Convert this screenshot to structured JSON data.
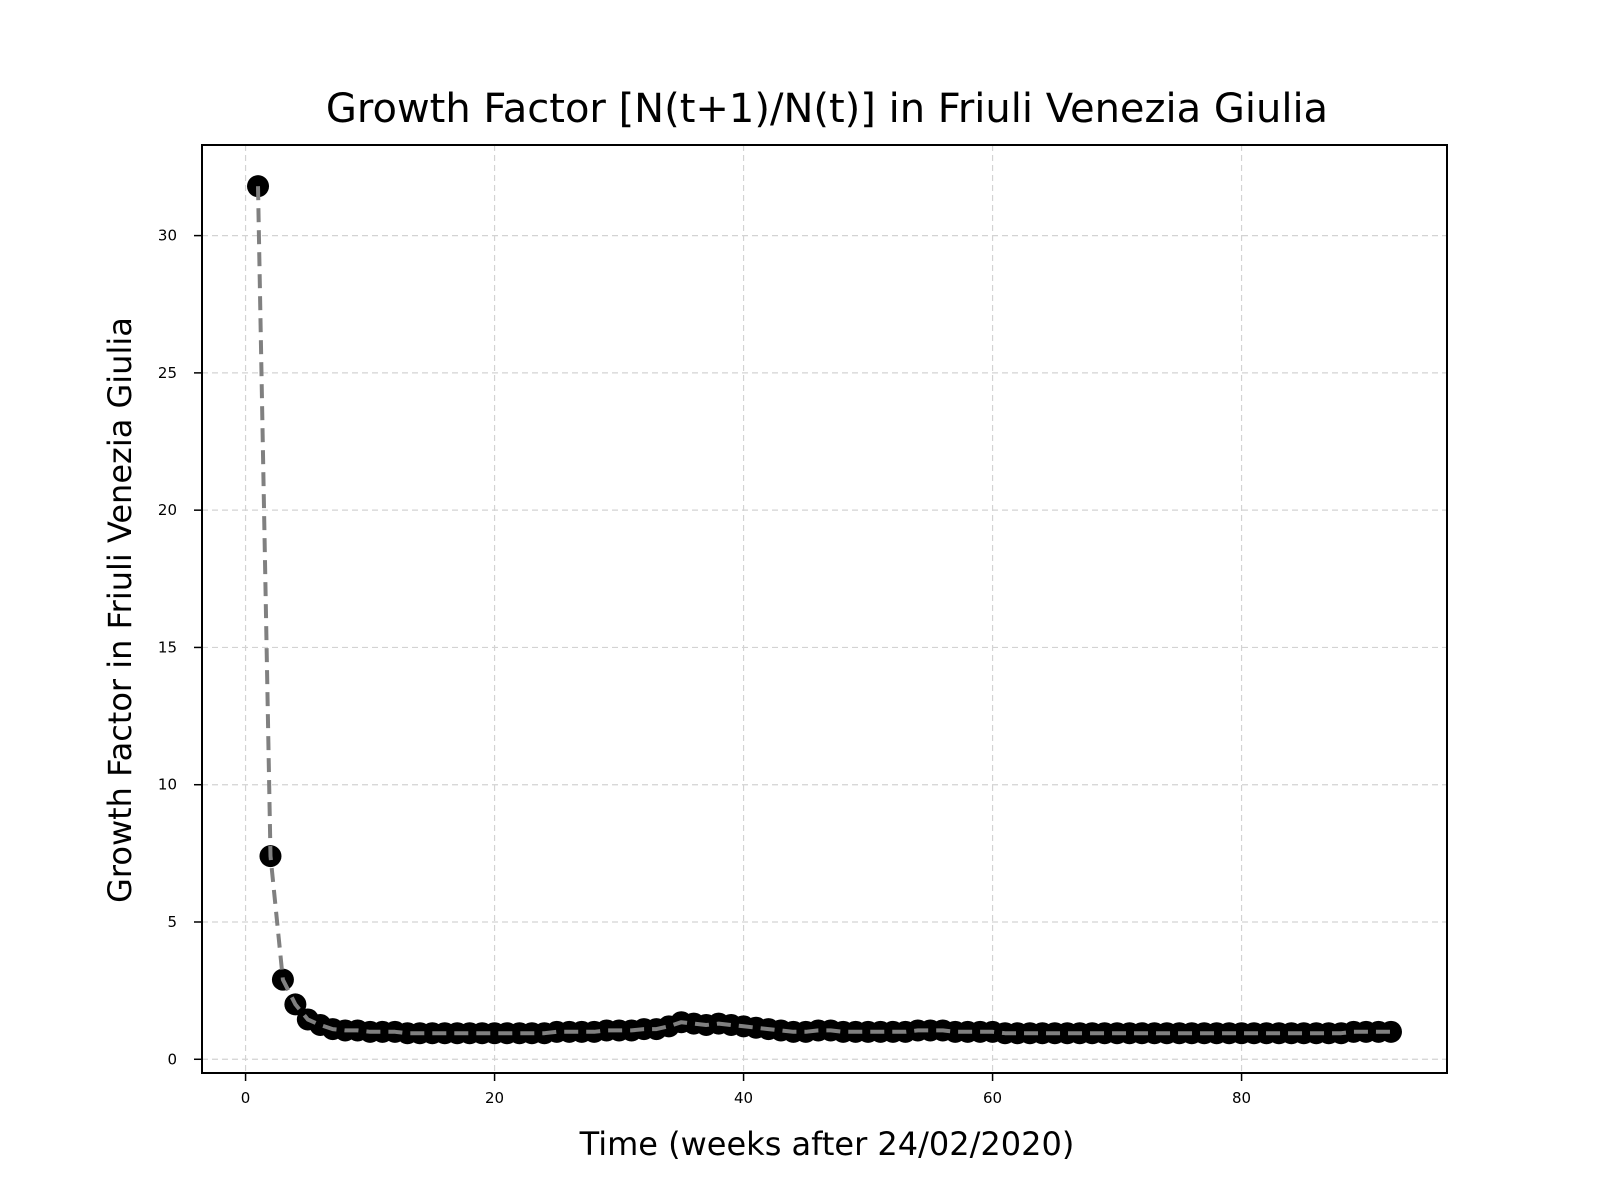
{
  "chart_data": {
    "type": "line",
    "title": "Growth Factor [N(t+1)/N(t)] in Friuli Venezia Giulia",
    "xlabel": "Time (weeks after 24/02/2020)",
    "ylabel": "Growth Factor in Friuli Venezia Giulia",
    "xlim": [
      -3.5,
      96.5
    ],
    "ylim": [
      -0.5,
      33.3
    ],
    "xticks": [
      0,
      20,
      40,
      60,
      80
    ],
    "yticks": [
      0,
      5,
      10,
      15,
      20,
      25,
      30
    ],
    "grid": true,
    "line_style": "dashed",
    "line_color": "#808080",
    "marker_color": "#000000",
    "x": [
      1,
      2,
      3,
      4,
      5,
      6,
      7,
      8,
      9,
      10,
      11,
      12,
      13,
      14,
      15,
      16,
      17,
      18,
      19,
      20,
      21,
      22,
      23,
      24,
      25,
      26,
      27,
      28,
      29,
      30,
      31,
      32,
      33,
      34,
      35,
      36,
      37,
      38,
      39,
      40,
      41,
      42,
      43,
      44,
      45,
      46,
      47,
      48,
      49,
      50,
      51,
      52,
      53,
      54,
      55,
      56,
      57,
      58,
      59,
      60,
      61,
      62,
      63,
      64,
      65,
      66,
      67,
      68,
      69,
      70,
      71,
      72,
      73,
      74,
      75,
      76,
      77,
      78,
      79,
      80,
      81,
      82,
      83,
      84,
      85,
      86,
      87,
      88,
      89,
      90,
      91,
      92
    ],
    "y": [
      31.8,
      7.4,
      2.9,
      2.0,
      1.45,
      1.25,
      1.1,
      1.05,
      1.05,
      1.0,
      1.0,
      1.0,
      0.95,
      0.95,
      0.95,
      0.95,
      0.95,
      0.95,
      0.95,
      0.95,
      0.95,
      0.95,
      0.95,
      0.95,
      1.0,
      1.0,
      1.0,
      1.0,
      1.05,
      1.05,
      1.05,
      1.1,
      1.1,
      1.2,
      1.35,
      1.3,
      1.25,
      1.3,
      1.25,
      1.2,
      1.15,
      1.1,
      1.05,
      1.0,
      1.0,
      1.05,
      1.05,
      1.0,
      1.0,
      1.0,
      1.0,
      1.0,
      1.0,
      1.05,
      1.05,
      1.05,
      1.0,
      1.0,
      1.0,
      1.0,
      0.95,
      0.95,
      0.95,
      0.95,
      0.95,
      0.95,
      0.95,
      0.95,
      0.95,
      0.95,
      0.95,
      0.95,
      0.95,
      0.95,
      0.95,
      0.95,
      0.95,
      0.95,
      0.95,
      0.95,
      0.95,
      0.95,
      0.95,
      0.95,
      0.95,
      0.95,
      0.95,
      0.95,
      1.0,
      1.0,
      1.0,
      1.0
    ]
  }
}
